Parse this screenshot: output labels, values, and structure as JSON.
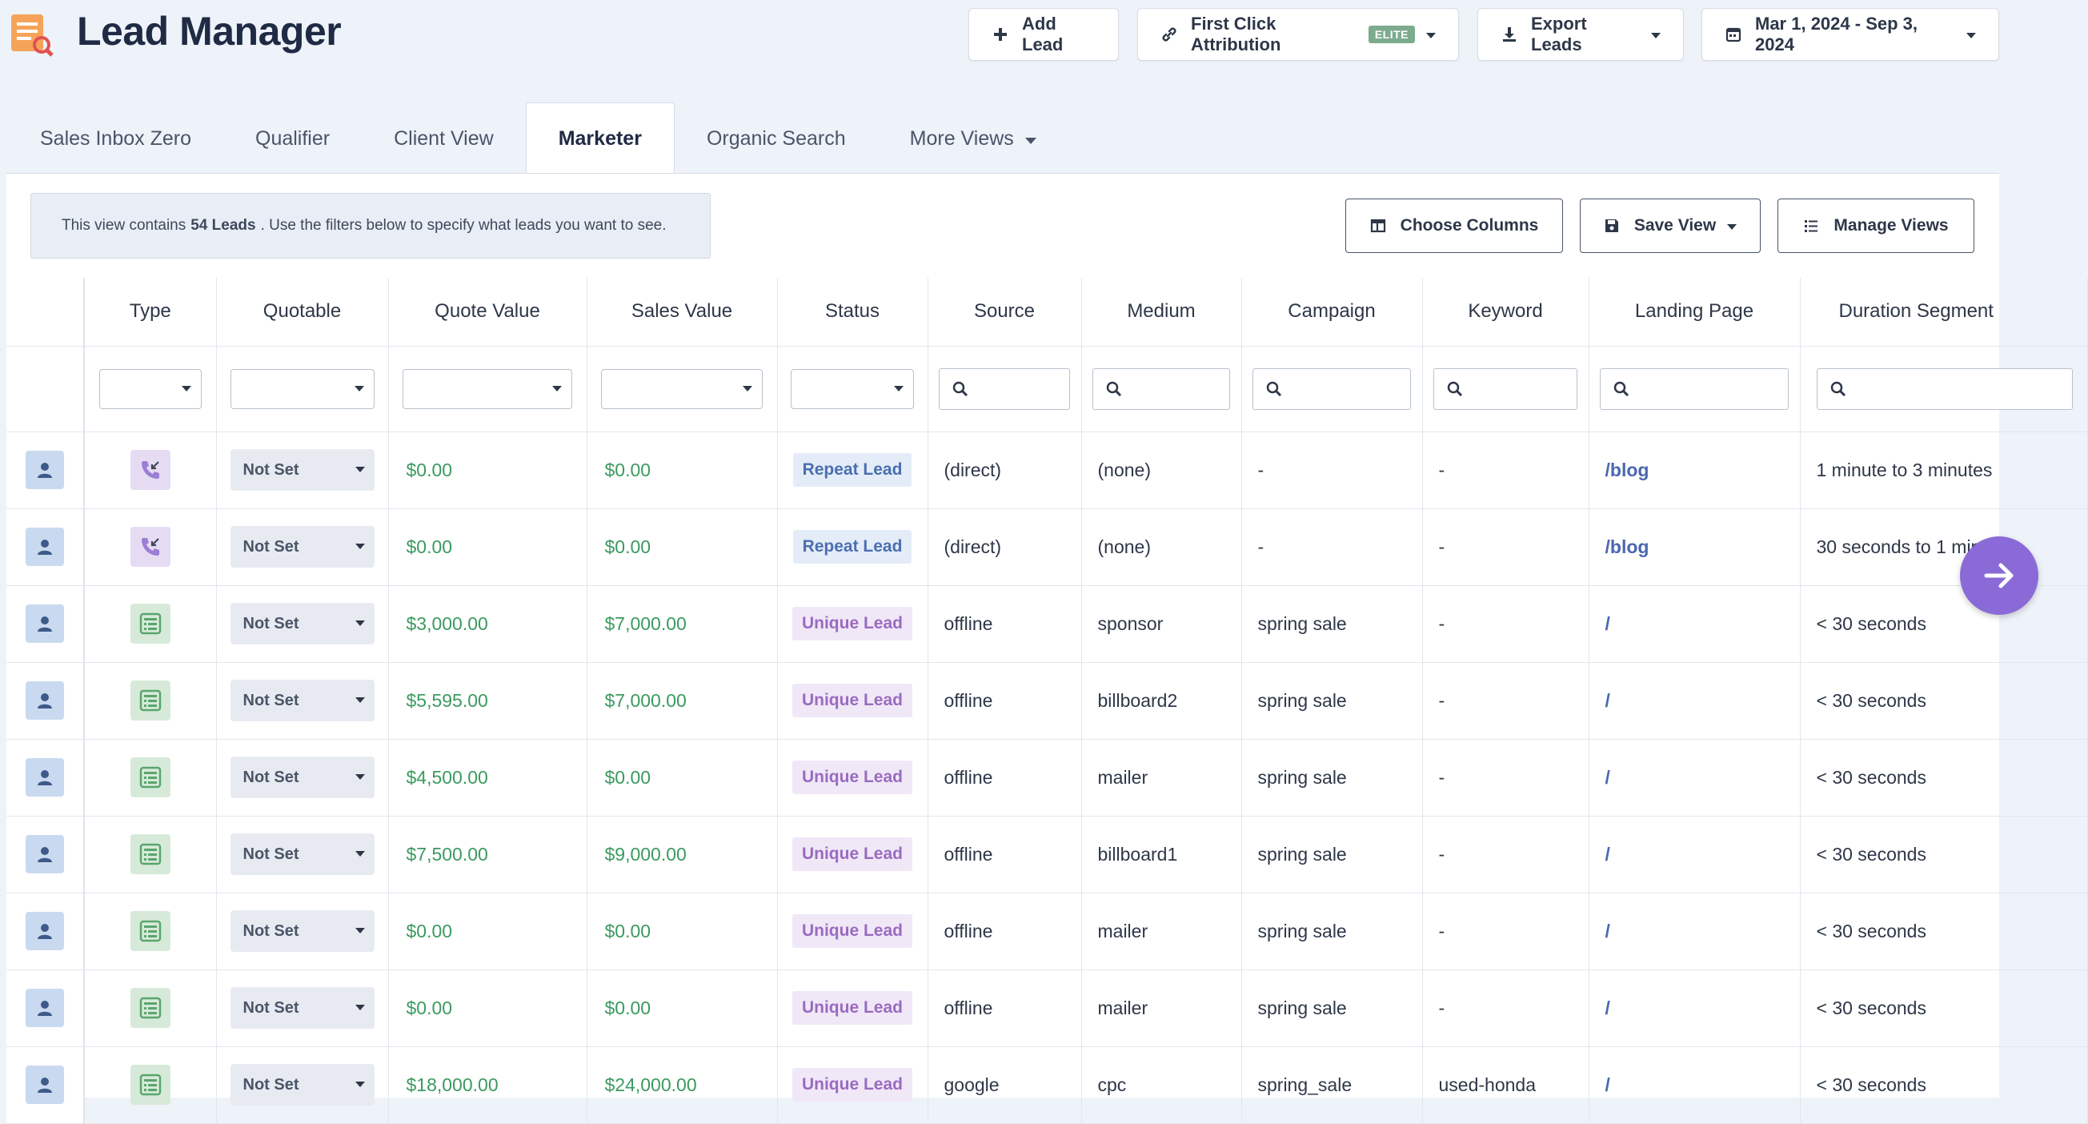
{
  "header": {
    "title": "Lead Manager",
    "add_lead_label": "Add Lead",
    "attribution_label": "First Click Attribution",
    "attribution_badge": "ELITE",
    "export_label": "Export Leads",
    "date_range": "Mar 1, 2024 - Sep 3, 2024"
  },
  "tabs": [
    {
      "label": "Sales Inbox Zero"
    },
    {
      "label": "Qualifier"
    },
    {
      "label": "Client View"
    },
    {
      "label": "Marketer"
    },
    {
      "label": "Organic Search"
    },
    {
      "label": "More Views"
    }
  ],
  "info": {
    "prefix": "This view contains",
    "count": "54 Leads",
    "suffix": ". Use the filters below to specify what leads you want to see."
  },
  "panel_buttons": {
    "choose_columns": "Choose Columns",
    "save_view": "Save View",
    "manage_views": "Manage Views"
  },
  "columns": [
    "",
    "Type",
    "Quotable",
    "Quote Value",
    "Sales Value",
    "Status",
    "Source",
    "Medium",
    "Campaign",
    "Keyword",
    "Landing Page",
    "Duration Segment"
  ],
  "rows": [
    {
      "type": "call",
      "quotable": "Not Set",
      "quote": "$0.00",
      "sales": "$0.00",
      "status": "Repeat Lead",
      "status_kind": "repeat",
      "source": "(direct)",
      "medium": "(none)",
      "campaign": "-",
      "keyword": "-",
      "landing": "/blog",
      "duration": "1 minute to 3 minutes"
    },
    {
      "type": "call",
      "quotable": "Not Set",
      "quote": "$0.00",
      "sales": "$0.00",
      "status": "Repeat Lead",
      "status_kind": "repeat",
      "source": "(direct)",
      "medium": "(none)",
      "campaign": "-",
      "keyword": "-",
      "landing": "/blog",
      "duration": "30 seconds to 1 minute"
    },
    {
      "type": "form",
      "quotable": "Not Set",
      "quote": "$3,000.00",
      "sales": "$7,000.00",
      "status": "Unique Lead",
      "status_kind": "unique",
      "source": "offline",
      "medium": "sponsor",
      "campaign": "spring sale",
      "keyword": "-",
      "landing": "/",
      "duration": "< 30 seconds"
    },
    {
      "type": "form",
      "quotable": "Not Set",
      "quote": "$5,595.00",
      "sales": "$7,000.00",
      "status": "Unique Lead",
      "status_kind": "unique",
      "source": "offline",
      "medium": "billboard2",
      "campaign": "spring sale",
      "keyword": "-",
      "landing": "/",
      "duration": "< 30 seconds"
    },
    {
      "type": "form",
      "quotable": "Not Set",
      "quote": "$4,500.00",
      "sales": "$0.00",
      "status": "Unique Lead",
      "status_kind": "unique",
      "source": "offline",
      "medium": "mailer",
      "campaign": "spring sale",
      "keyword": "-",
      "landing": "/",
      "duration": "< 30 seconds"
    },
    {
      "type": "form",
      "quotable": "Not Set",
      "quote": "$7,500.00",
      "sales": "$9,000.00",
      "status": "Unique Lead",
      "status_kind": "unique",
      "source": "offline",
      "medium": "billboard1",
      "campaign": "spring sale",
      "keyword": "-",
      "landing": "/",
      "duration": "< 30 seconds"
    },
    {
      "type": "form",
      "quotable": "Not Set",
      "quote": "$0.00",
      "sales": "$0.00",
      "status": "Unique Lead",
      "status_kind": "unique",
      "source": "offline",
      "medium": "mailer",
      "campaign": "spring sale",
      "keyword": "-",
      "landing": "/",
      "duration": "< 30 seconds"
    },
    {
      "type": "form",
      "quotable": "Not Set",
      "quote": "$0.00",
      "sales": "$0.00",
      "status": "Unique Lead",
      "status_kind": "unique",
      "source": "offline",
      "medium": "mailer",
      "campaign": "spring sale",
      "keyword": "-",
      "landing": "/",
      "duration": "< 30 seconds"
    },
    {
      "type": "form",
      "quotable": "Not Set",
      "quote": "$18,000.00",
      "sales": "$24,000.00",
      "status": "Unique Lead",
      "status_kind": "unique",
      "source": "google",
      "medium": "cpc",
      "campaign": "spring_sale",
      "keyword": "used-honda",
      "landing": "/",
      "duration": "< 30 seconds"
    }
  ],
  "colors": {
    "accent": "#8a6ad6",
    "money": "#3b9a5f",
    "repeat": "#4b6fb0",
    "unique": "#9a6bc1"
  }
}
